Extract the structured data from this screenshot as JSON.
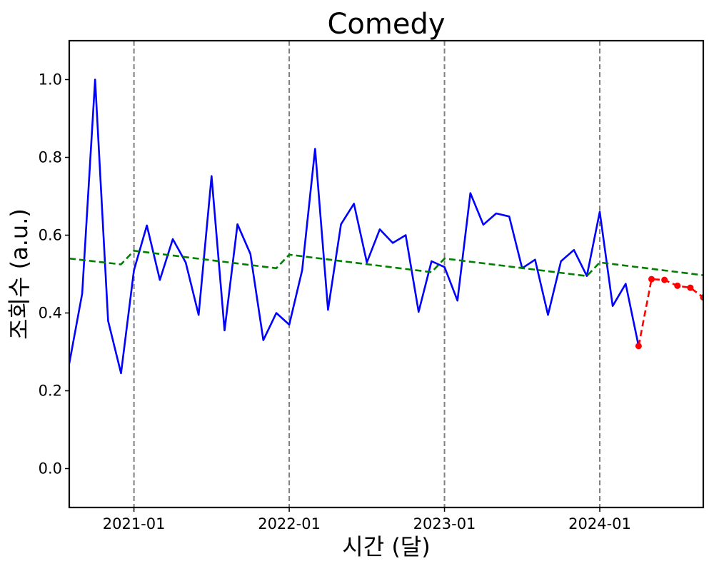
{
  "chart_data": {
    "type": "line",
    "title": "Comedy",
    "xlabel": "시간 (달)",
    "ylabel": "조회수 (a.u.)",
    "xlim": [
      "2020-08-01",
      "2024-09-01"
    ],
    "ylim": [
      -0.1,
      1.1
    ],
    "y_ticks": [
      0.0,
      0.2,
      0.4,
      0.6,
      0.8,
      1.0
    ],
    "y_tick_labels": [
      "0.0",
      "0.2",
      "0.4",
      "0.6",
      "0.8",
      "1.0"
    ],
    "x_ticks": [
      "2021-01-01",
      "2022-01-01",
      "2023-01-01",
      "2024-01-01"
    ],
    "x_tick_labels": [
      "2021-01",
      "2022-01",
      "2023-01",
      "2024-01"
    ],
    "vlines": [
      "2021-01-01",
      "2022-01-01",
      "2023-01-01",
      "2024-01-01"
    ],
    "grid": false,
    "legend": "none",
    "series": [
      {
        "style": "solid",
        "color": "#0000ff",
        "x": [
          "2020-08-01",
          "2020-09-01",
          "2020-10-01",
          "2020-11-01",
          "2020-12-01",
          "2021-01-01",
          "2021-02-01",
          "2021-03-01",
          "2021-04-01",
          "2021-05-01",
          "2021-06-01",
          "2021-07-01",
          "2021-08-01",
          "2021-09-01",
          "2021-10-01",
          "2021-11-01",
          "2021-12-01",
          "2022-01-01",
          "2022-02-01",
          "2022-03-01",
          "2022-04-01",
          "2022-05-01",
          "2022-06-01",
          "2022-07-01",
          "2022-08-01",
          "2022-09-01",
          "2022-10-01",
          "2022-11-01",
          "2022-12-01",
          "2023-01-01",
          "2023-02-01",
          "2023-03-01",
          "2023-04-01",
          "2023-05-01",
          "2023-06-01",
          "2023-07-01",
          "2023-08-01",
          "2023-09-01",
          "2023-10-01",
          "2023-11-01",
          "2023-12-01",
          "2024-01-01",
          "2024-02-01",
          "2024-03-01",
          "2024-04-01"
        ],
        "y": [
          0.27,
          0.45,
          1.0,
          0.38,
          0.245,
          0.51,
          0.625,
          0.485,
          0.59,
          0.53,
          0.395,
          0.752,
          0.355,
          0.628,
          0.552,
          0.33,
          0.4,
          0.37,
          0.51,
          0.822,
          0.408,
          0.628,
          0.681,
          0.53,
          0.615,
          0.58,
          0.6,
          0.403,
          0.533,
          0.518,
          0.432,
          0.708,
          0.627,
          0.656,
          0.648,
          0.515,
          0.537,
          0.395,
          0.533,
          0.562,
          0.495,
          0.66,
          0.418,
          0.475,
          0.315
        ]
      },
      {
        "style": "dashed",
        "color": "#008000",
        "x": [
          "2020-08-01",
          "2020-12-01",
          "2021-01-01",
          "2021-12-01",
          "2022-01-01",
          "2022-12-01",
          "2023-01-01",
          "2023-12-01",
          "2024-01-01",
          "2024-09-01"
        ],
        "y": [
          0.54,
          0.525,
          0.56,
          0.515,
          0.55,
          0.505,
          0.54,
          0.495,
          0.53,
          0.497
        ]
      },
      {
        "style": "dashed-markers",
        "color": "#ff0000",
        "x": [
          "2024-04-01",
          "2024-05-01",
          "2024-06-01",
          "2024-07-01",
          "2024-08-01",
          "2024-09-01"
        ],
        "y": [
          0.315,
          0.487,
          0.485,
          0.47,
          0.465,
          0.44
        ]
      }
    ]
  }
}
